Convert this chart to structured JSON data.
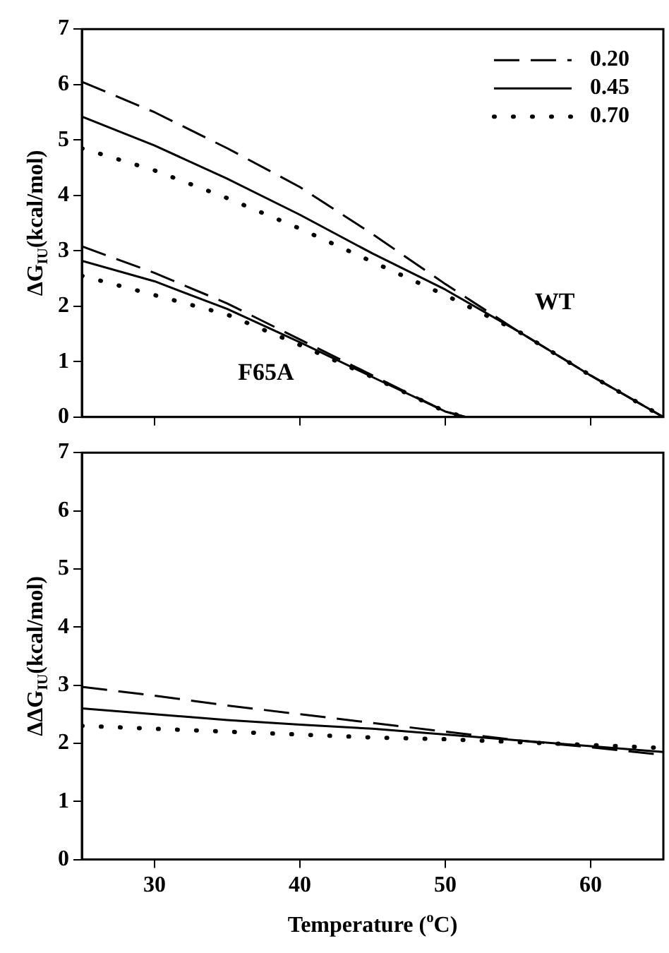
{
  "chart_data": [
    {
      "type": "line",
      "ylabel": "ΔG$_{IU}$(kcal/mol)",
      "xlim": [
        25,
        65
      ],
      "xticks": [
        30,
        40,
        50,
        60
      ],
      "ylim": [
        0,
        7
      ],
      "yticks": [
        0,
        1,
        2,
        3,
        4,
        5,
        6,
        7
      ],
      "tick_labels": "y",
      "grid": false,
      "legend": "top right",
      "marker": "none",
      "series": [
        {
          "name": "0.20",
          "color": "#000000",
          "line_style": "dashed",
          "x": [
            25,
            30,
            35,
            40,
            45,
            50,
            55,
            60,
            65
          ],
          "values": [
            6.05,
            5.5,
            4.85,
            4.15,
            3.3,
            2.4,
            1.55,
            0.75,
            0
          ]
        },
        {
          "name": "0.45",
          "color": "#000000",
          "line_style": "solid",
          "x": [
            25,
            30,
            35,
            40,
            45,
            50,
            55,
            60,
            65
          ],
          "values": [
            5.42,
            4.9,
            4.3,
            3.65,
            2.95,
            2.3,
            1.55,
            0.75,
            0
          ]
        },
        {
          "name": "0.70",
          "color": "#000000",
          "line_style": "dotted",
          "x": [
            25,
            30,
            35,
            40,
            45,
            50,
            55,
            60,
            65
          ],
          "values": [
            4.85,
            4.45,
            3.95,
            3.4,
            2.8,
            2.2,
            1.55,
            0.75,
            0
          ]
        },
        {
          "color": "#000000",
          "line_style": "dashed",
          "x": [
            25,
            30,
            35,
            40,
            45,
            50,
            51.4
          ],
          "values": [
            3.08,
            2.6,
            2.05,
            1.4,
            0.75,
            0.1,
            0
          ]
        },
        {
          "color": "#000000",
          "line_style": "solid",
          "x": [
            25,
            30,
            35,
            40,
            45,
            50,
            51.4
          ],
          "values": [
            2.82,
            2.45,
            1.95,
            1.35,
            0.72,
            0.1,
            0
          ]
        },
        {
          "color": "#000000",
          "line_style": "dotted",
          "x": [
            25,
            30,
            35,
            40,
            45,
            50,
            51.4
          ],
          "values": [
            2.55,
            2.2,
            1.85,
            1.3,
            0.72,
            0.1,
            0
          ]
        }
      ],
      "annotations": [
        {
          "text": "WT",
          "x": 55,
          "y": 1.55
        },
        {
          "text": "F65A",
          "x": 40,
          "y": 1.35
        }
      ]
    },
    {
      "type": "line",
      "ylabel": "ΔΔG$_{IU}$(kcal/mol)",
      "xlabel": "Temperature ($^{o}$C)",
      "xlim": [
        25,
        65
      ],
      "xticks": [
        30,
        40,
        50,
        60
      ],
      "ylim": [
        0,
        7
      ],
      "yticks": [
        0,
        1,
        2,
        3,
        4,
        5,
        6,
        7
      ],
      "grid": false,
      "marker": "none",
      "x": [
        25,
        30,
        35,
        40,
        45,
        50,
        55,
        60,
        65
      ],
      "series": [
        {
          "color": "#000000",
          "line_style": "dashed",
          "values": [
            2.97,
            2.82,
            2.65,
            2.5,
            2.35,
            2.2,
            2.05,
            1.93,
            1.8
          ]
        },
        {
          "color": "#000000",
          "line_style": "solid",
          "values": [
            2.6,
            2.5,
            2.4,
            2.32,
            2.25,
            2.15,
            2.05,
            1.95,
            1.85
          ]
        },
        {
          "color": "#000000",
          "line_style": "dotted",
          "values": [
            2.3,
            2.25,
            2.2,
            2.15,
            2.1,
            2.07,
            2.02,
            1.97,
            1.92
          ]
        }
      ]
    }
  ]
}
